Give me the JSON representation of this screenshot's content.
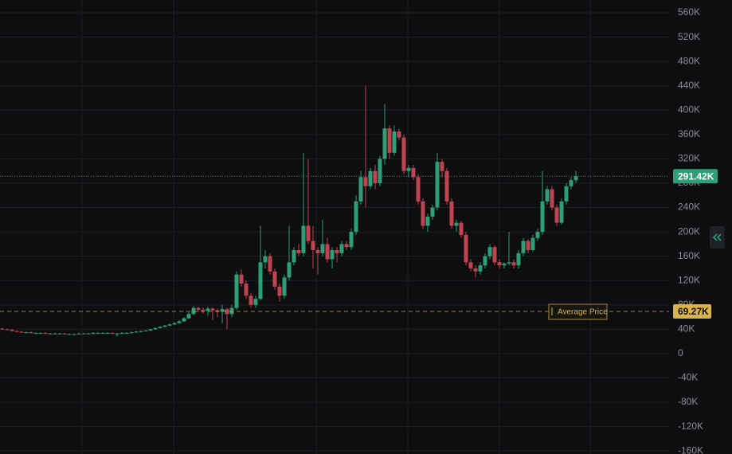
{
  "chart_data": {
    "type": "candlestick",
    "ohlc": [
      [
        41,
        42,
        39,
        40
      ],
      [
        40,
        41,
        38,
        39
      ],
      [
        39,
        40,
        36,
        37
      ],
      [
        37,
        38,
        35,
        36
      ],
      [
        36,
        37,
        34,
        35
      ],
      [
        35,
        36,
        34,
        35
      ],
      [
        35,
        36,
        33,
        34
      ],
      [
        34,
        35,
        33,
        34
      ],
      [
        34,
        35,
        33,
        34
      ],
      [
        34,
        35,
        32,
        33
      ],
      [
        33,
        34,
        32,
        33
      ],
      [
        33,
        34,
        32,
        33
      ],
      [
        33,
        34,
        32,
        33
      ],
      [
        33,
        34,
        31,
        32
      ],
      [
        32,
        33,
        31,
        32
      ],
      [
        32,
        33,
        31,
        32
      ],
      [
        32,
        34,
        31,
        33
      ],
      [
        33,
        34,
        32,
        33
      ],
      [
        33,
        34,
        32,
        33
      ],
      [
        33,
        35,
        32,
        34
      ],
      [
        34,
        35,
        33,
        34
      ],
      [
        34,
        35,
        33,
        34
      ],
      [
        34,
        35,
        33,
        34
      ],
      [
        34,
        35,
        32,
        33
      ],
      [
        33,
        34,
        28,
        33
      ],
      [
        33,
        35,
        32,
        34
      ],
      [
        34,
        35,
        33,
        34
      ],
      [
        34,
        36,
        33,
        35
      ],
      [
        35,
        37,
        34,
        36
      ],
      [
        36,
        38,
        35,
        37
      ],
      [
        37,
        39,
        36,
        38
      ],
      [
        38,
        41,
        37,
        40
      ],
      [
        40,
        43,
        39,
        42
      ],
      [
        42,
        45,
        41,
        44
      ],
      [
        44,
        47,
        43,
        46
      ],
      [
        46,
        49,
        45,
        48
      ],
      [
        48,
        52,
        47,
        50
      ],
      [
        50,
        55,
        49,
        53
      ],
      [
        53,
        60,
        52,
        58
      ],
      [
        58,
        68,
        57,
        65
      ],
      [
        65,
        78,
        63,
        75
      ],
      [
        75,
        77,
        68,
        72
      ],
      [
        72,
        76,
        66,
        70
      ],
      [
        70,
        77,
        62,
        74
      ],
      [
        74,
        76,
        55,
        71
      ],
      [
        71,
        74,
        60,
        69
      ],
      [
        69,
        80,
        50,
        73
      ],
      [
        73,
        75,
        40,
        65
      ],
      [
        65,
        80,
        60,
        75
      ],
      [
        75,
        135,
        72,
        130
      ],
      [
        130,
        138,
        110,
        115
      ],
      [
        115,
        120,
        90,
        95
      ],
      [
        95,
        100,
        75,
        80
      ],
      [
        80,
        95,
        75,
        90
      ],
      [
        90,
        210,
        88,
        150
      ],
      [
        150,
        170,
        140,
        160
      ],
      [
        160,
        165,
        130,
        135
      ],
      [
        135,
        140,
        105,
        110
      ],
      [
        110,
        115,
        85,
        95
      ],
      [
        95,
        130,
        90,
        125
      ],
      [
        125,
        210,
        120,
        150
      ],
      [
        150,
        175,
        145,
        170
      ],
      [
        170,
        180,
        160,
        165
      ],
      [
        165,
        330,
        160,
        210
      ],
      [
        210,
        320,
        180,
        185
      ],
      [
        185,
        210,
        140,
        170
      ],
      [
        170,
        175,
        130,
        165
      ],
      [
        165,
        220,
        160,
        180
      ],
      [
        180,
        190,
        150,
        155
      ],
      [
        155,
        175,
        140,
        170
      ],
      [
        170,
        175,
        150,
        165
      ],
      [
        165,
        185,
        160,
        180
      ],
      [
        180,
        185,
        170,
        175
      ],
      [
        175,
        205,
        170,
        200
      ],
      [
        200,
        260,
        195,
        250
      ],
      [
        250,
        300,
        245,
        290
      ],
      [
        290,
        440,
        240,
        275
      ],
      [
        275,
        305,
        270,
        300
      ],
      [
        300,
        310,
        270,
        280
      ],
      [
        280,
        325,
        275,
        320
      ],
      [
        320,
        410,
        310,
        370
      ],
      [
        370,
        375,
        320,
        330
      ],
      [
        330,
        375,
        325,
        365
      ],
      [
        365,
        370,
        350,
        355
      ],
      [
        355,
        360,
        295,
        300
      ],
      [
        300,
        310,
        290,
        305
      ],
      [
        305,
        310,
        285,
        290
      ],
      [
        290,
        295,
        245,
        250
      ],
      [
        250,
        255,
        205,
        210
      ],
      [
        210,
        230,
        200,
        225
      ],
      [
        225,
        245,
        220,
        240
      ],
      [
        240,
        330,
        235,
        315
      ],
      [
        315,
        320,
        290,
        300
      ],
      [
        300,
        305,
        245,
        250
      ],
      [
        250,
        255,
        205,
        210
      ],
      [
        210,
        220,
        200,
        215
      ],
      [
        215,
        218,
        190,
        195
      ],
      [
        195,
        200,
        145,
        150
      ],
      [
        150,
        155,
        135,
        140
      ],
      [
        140,
        145,
        125,
        135
      ],
      [
        135,
        150,
        130,
        145
      ],
      [
        145,
        165,
        140,
        160
      ],
      [
        160,
        180,
        155,
        175
      ],
      [
        175,
        178,
        145,
        150
      ],
      [
        150,
        155,
        140,
        145
      ],
      [
        145,
        150,
        140,
        148
      ],
      [
        148,
        200,
        145,
        150
      ],
      [
        150,
        155,
        140,
        145
      ],
      [
        145,
        170,
        140,
        165
      ],
      [
        165,
        190,
        160,
        185
      ],
      [
        185,
        188,
        165,
        170
      ],
      [
        170,
        195,
        168,
        190
      ],
      [
        190,
        205,
        185,
        200
      ],
      [
        200,
        300,
        195,
        250
      ],
      [
        250,
        275,
        245,
        270
      ],
      [
        270,
        275,
        235,
        240
      ],
      [
        240,
        245,
        210,
        215
      ],
      [
        215,
        255,
        212,
        250
      ],
      [
        250,
        280,
        245,
        275
      ],
      [
        275,
        290,
        270,
        285
      ],
      [
        285,
        300,
        280,
        291.42
      ]
    ],
    "up_color": "#2e9e76",
    "down_color": "#c0444f",
    "ylim": [
      -165,
      581
    ],
    "yticks": [
      {
        "value": 560,
        "label": "560K"
      },
      {
        "value": 520,
        "label": "520K"
      },
      {
        "value": 480,
        "label": "480K"
      },
      {
        "value": 440,
        "label": "440K"
      },
      {
        "value": 400,
        "label": "400K"
      },
      {
        "value": 360,
        "label": "360K"
      },
      {
        "value": 320,
        "label": "320K"
      },
      {
        "value": 280,
        "label": "280K"
      },
      {
        "value": 240,
        "label": "240K"
      },
      {
        "value": 200,
        "label": "200K"
      },
      {
        "value": 160,
        "label": "160K"
      },
      {
        "value": 120,
        "label": "120K"
      },
      {
        "value": 80,
        "label": "80K"
      },
      {
        "value": 40,
        "label": "40K"
      },
      0,
      {
        "value": -40,
        "label": "-40K"
      },
      {
        "value": -80,
        "label": "-80K"
      },
      {
        "value": -120,
        "label": "-120K"
      },
      {
        "value": -160,
        "label": "-160K"
      }
    ],
    "grid": true,
    "current_price": {
      "value": 291.42,
      "label": "291.42K",
      "color": "#2e9e76"
    },
    "average_price": {
      "name": "Average Price",
      "value": 69.27,
      "label": "69.27K",
      "color": "#d8b24a"
    }
  }
}
